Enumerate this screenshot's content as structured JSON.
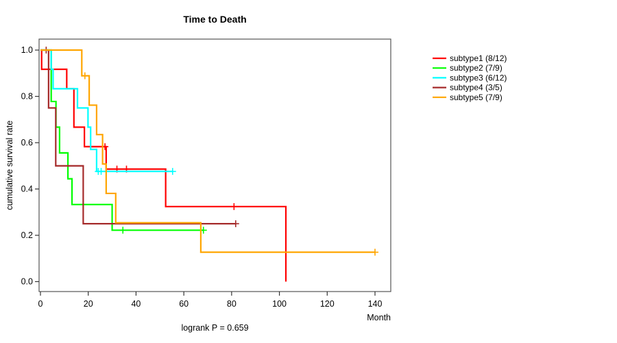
{
  "chart_data": {
    "type": "line",
    "variant": "kaplan-meier-step-curves",
    "title": "Time to Death",
    "xlabel": "Month",
    "ylabel": "cumulative survival rate",
    "footer": "logrank P = 0.659",
    "xlim": [
      0,
      146
    ],
    "ylim": [
      0.0,
      1.0
    ],
    "x_ticks": [
      "0",
      "20",
      "40",
      "60",
      "80",
      "100",
      "120",
      "140"
    ],
    "x_tick_values": [
      0,
      20,
      40,
      60,
      80,
      100,
      120,
      140
    ],
    "y_ticks": [
      "0.0",
      "0.2",
      "0.4",
      "0.6",
      "0.8",
      "1.0"
    ],
    "y_tick_values": [
      0.0,
      0.2,
      0.4,
      0.6,
      0.8,
      1.0
    ],
    "grid": false,
    "legend_position": "right-outside",
    "series": [
      {
        "name": "subtype1 (8/12)",
        "color": "#ff0000",
        "steps": [
          [
            0,
            1.0
          ],
          [
            0.5,
            0.917
          ],
          [
            11,
            0.833
          ],
          [
            14,
            0.667
          ],
          [
            18.4,
            0.583
          ],
          [
            27.5,
            0.486
          ],
          [
            52.4,
            0.324
          ],
          [
            102.7,
            0.0
          ]
        ],
        "end": 102.7,
        "censors": [
          [
            27,
            0.583
          ],
          [
            32,
            0.486
          ],
          [
            36,
            0.486
          ],
          [
            81,
            0.324
          ]
        ]
      },
      {
        "name": "subtype2 (7/9)",
        "color": "#00ff00",
        "steps": [
          [
            0,
            1.0
          ],
          [
            4.5,
            0.778
          ],
          [
            6.5,
            0.667
          ],
          [
            8,
            0.556
          ],
          [
            11.5,
            0.444
          ],
          [
            13.2,
            0.333
          ],
          [
            30,
            0.222
          ]
        ],
        "end": 68.2,
        "censors": [
          [
            34.5,
            0.222
          ],
          [
            68.2,
            0.222
          ]
        ]
      },
      {
        "name": "subtype3 (6/12)",
        "color": "#00ffff",
        "steps": [
          [
            0,
            1.0
          ],
          [
            4.5,
            0.917
          ],
          [
            5.3,
            0.833
          ],
          [
            15.5,
            0.75
          ],
          [
            19.9,
            0.667
          ],
          [
            21,
            0.571
          ],
          [
            23.5,
            0.476
          ]
        ],
        "end": 55.3,
        "censors": [
          [
            24.2,
            0.476
          ],
          [
            25.4,
            0.476
          ],
          [
            55.3,
            0.476
          ]
        ]
      },
      {
        "name": "subtype4 (3/5)",
        "color": "#a52a2a",
        "steps": [
          [
            0,
            1.0
          ],
          [
            3.4,
            0.75
          ],
          [
            6.4,
            0.5
          ],
          [
            17.9,
            0.25
          ]
        ],
        "end": 81.7,
        "censors": [
          [
            2.4,
            1.0
          ],
          [
            81.7,
            0.25
          ]
        ]
      },
      {
        "name": "subtype5 (7/9)",
        "color": "#ffa500",
        "steps": [
          [
            0,
            1.0
          ],
          [
            17.3,
            0.889
          ],
          [
            20.4,
            0.762
          ],
          [
            23.5,
            0.635
          ],
          [
            26,
            0.508
          ],
          [
            27.5,
            0.381
          ],
          [
            31.5,
            0.254
          ],
          [
            67.1,
            0.127
          ]
        ],
        "end": 140,
        "censors": [
          [
            18.6,
            0.889
          ],
          [
            140,
            0.127
          ]
        ]
      }
    ]
  }
}
